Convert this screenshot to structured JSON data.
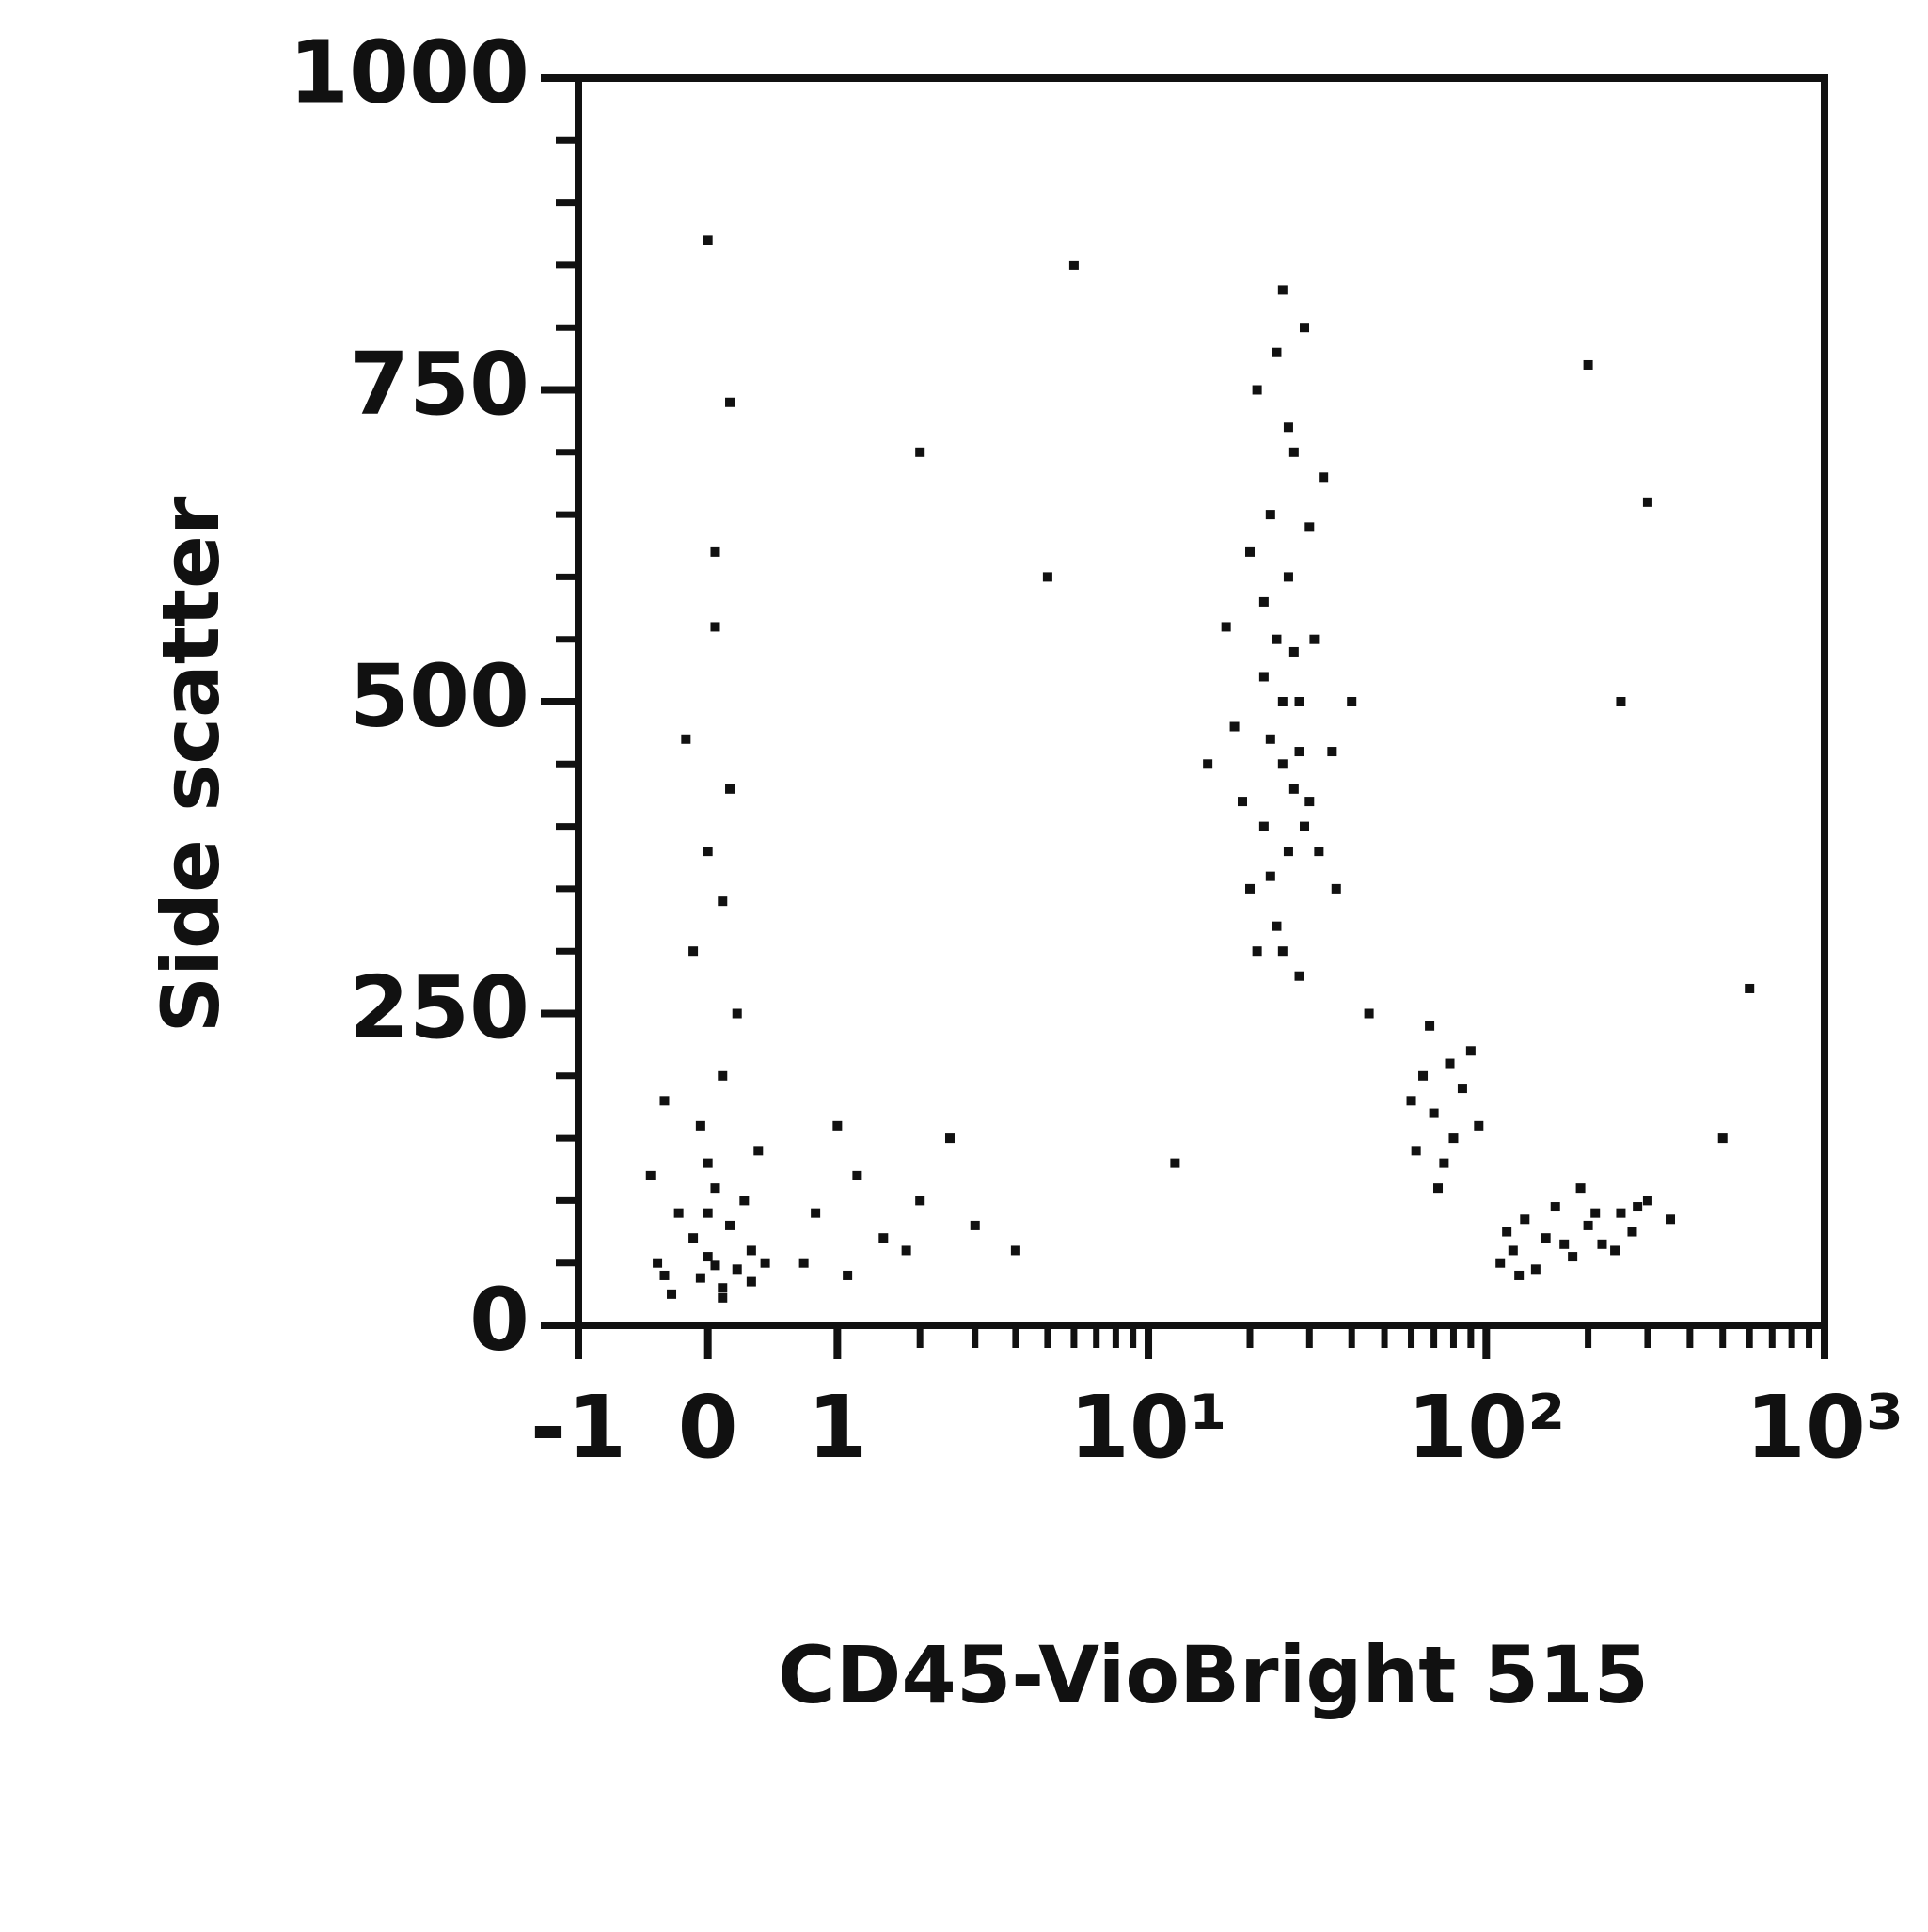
{
  "chart_data": {
    "type": "scatter",
    "x_label": "CD45-VioBright 515",
    "y_label": "Side scatter",
    "xscale": "asinh",
    "color": "#111111",
    "xlim": [
      -1,
      1000
    ],
    "ylim": [
      0,
      1000
    ],
    "xticks": [
      -1,
      0,
      1,
      {
        "value": 10,
        "label": "10¹"
      },
      {
        "value": 100,
        "label": "10²"
      },
      {
        "value": 1000,
        "label": "10³"
      }
    ],
    "xminorticks": [
      2,
      3,
      4,
      5,
      6,
      7,
      8,
      9,
      20,
      30,
      40,
      50,
      60,
      70,
      80,
      90,
      200,
      300,
      400,
      500,
      600,
      700,
      800,
      900
    ],
    "yticks": [
      0,
      250,
      500,
      750,
      1000
    ],
    "yminorticks": [
      50,
      100,
      150,
      200,
      300,
      350,
      400,
      450,
      550,
      600,
      650,
      700,
      800,
      850,
      900,
      950
    ],
    "x": [
      -0.3,
      0,
      0.1,
      -0.1,
      0.2,
      -0.2,
      0.05,
      0.3,
      -0.35,
      0.15,
      0,
      -0.05,
      0.1,
      0.2,
      -0.1,
      0,
      0.15,
      -0.15,
      0.05,
      0.3,
      -0.25,
      0.4,
      0.25,
      -0.4,
      0.1,
      0,
      0.05,
      -0.05,
      0.35,
      -0.3,
      0.1,
      0.05,
      0,
      0.15,
      0.8,
      1.2,
      1.5,
      2,
      2.5,
      1,
      3,
      0.7,
      1.8,
      1.1,
      25,
      22,
      28,
      20,
      30,
      24,
      26,
      23,
      27,
      21,
      29,
      25,
      32,
      18,
      35,
      19,
      31,
      22,
      26,
      24,
      28,
      20,
      33,
      17,
      25,
      40,
      15,
      36,
      23,
      27,
      22,
      30,
      21,
      26,
      24,
      29,
      25,
      23,
      28,
      27,
      70,
      65,
      80,
      60,
      90,
      75,
      85,
      68,
      72,
      95,
      62,
      78,
      150,
      120,
      200,
      250,
      180,
      130,
      300,
      220,
      110,
      160,
      270,
      140,
      190,
      240,
      350,
      170,
      210,
      115,
      280,
      125,
      5,
      6,
      2,
      200,
      600,
      45,
      500,
      12,
      4,
      300,
      250
    ],
    "values": [
      40,
      55,
      30,
      70,
      45,
      90,
      110,
      60,
      50,
      80,
      130,
      160,
      200,
      250,
      300,
      380,
      430,
      470,
      560,
      35,
      25,
      50,
      100,
      120,
      22,
      90,
      48,
      38,
      140,
      180,
      340,
      620,
      870,
      740,
      90,
      120,
      70,
      100,
      150,
      160,
      80,
      50,
      60,
      40,
      450,
      400,
      500,
      350,
      420,
      550,
      600,
      650,
      700,
      750,
      800,
      300,
      380,
      480,
      460,
      420,
      550,
      520,
      380,
      320,
      280,
      620,
      680,
      560,
      830,
      500,
      450,
      350,
      470,
      430,
      580,
      640,
      300,
      720,
      780,
      400,
      500,
      360,
      460,
      540,
      170,
      200,
      150,
      180,
      220,
      130,
      190,
      240,
      110,
      160,
      140,
      210,
      70,
      60,
      80,
      90,
      55,
      85,
      100,
      65,
      50,
      95,
      75,
      45,
      110,
      60,
      85,
      65,
      90,
      75,
      95,
      40,
      600,
      850,
      700,
      770,
      270,
      250,
      150,
      130,
      60,
      660,
      500
    ]
  }
}
